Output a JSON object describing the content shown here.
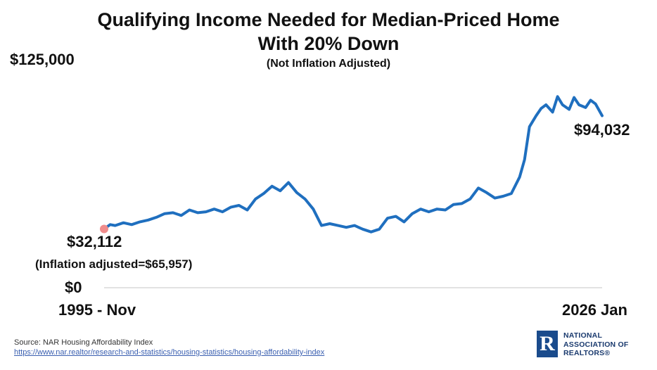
{
  "header": {
    "title_line1": "Qualifying Income Needed for Median-Priced Home",
    "title_line2": "With 20% Down",
    "subtitle": "(Not Inflation Adjusted)"
  },
  "chart_data": {
    "type": "line",
    "title": "Qualifying Income Needed for Median-Priced Home With 20% Down",
    "subtitle": "(Not Inflation Adjusted)",
    "xlabel": "",
    "ylabel": "",
    "ylim": [
      0,
      125000
    ],
    "y_tick_labels": [
      "$0",
      "$125,000"
    ],
    "x_tick_labels": [
      "1995 - Nov",
      "2026 Jan"
    ],
    "color": "#1f6fbf",
    "start_marker_color": "#f08c8c",
    "series": [
      {
        "name": "Qualifying income",
        "x": [
          1995.83,
          1996.2,
          1996.5,
          1997.0,
          1997.5,
          1998.0,
          1998.5,
          1999.0,
          1999.5,
          2000.0,
          2000.5,
          2001.0,
          2001.5,
          2002.0,
          2002.5,
          2003.0,
          2003.5,
          2004.0,
          2004.5,
          2005.0,
          2005.5,
          2006.0,
          2006.5,
          2007.0,
          2007.5,
          2008.0,
          2008.5,
          2009.0,
          2009.5,
          2010.0,
          2010.5,
          2011.0,
          2011.5,
          2012.0,
          2012.5,
          2013.0,
          2013.5,
          2014.0,
          2014.5,
          2015.0,
          2015.5,
          2016.0,
          2016.5,
          2017.0,
          2017.5,
          2018.0,
          2018.5,
          2019.0,
          2019.5,
          2020.0,
          2020.5,
          2021.0,
          2021.3,
          2021.6,
          2022.0,
          2022.3,
          2022.6,
          2023.0,
          2023.3,
          2023.6,
          2024.0,
          2024.3,
          2024.6,
          2025.0,
          2025.3,
          2025.6,
          2026.0
        ],
        "values": [
          32112,
          34500,
          34000,
          35500,
          34500,
          36000,
          37000,
          38500,
          40500,
          41000,
          39500,
          42500,
          41000,
          41500,
          43000,
          41500,
          44000,
          45000,
          42500,
          48500,
          51500,
          55500,
          53000,
          57500,
          52000,
          48500,
          43000,
          34000,
          35000,
          34000,
          33000,
          34000,
          32000,
          30500,
          32000,
          38000,
          39000,
          36000,
          40500,
          43000,
          41500,
          43000,
          42500,
          45500,
          46000,
          48500,
          54500,
          52000,
          49000,
          50000,
          51500,
          60500,
          70000,
          88000,
          94000,
          98000,
          100000,
          96000,
          104500,
          100000,
          97500,
          104000,
          100000,
          98500,
          102500,
          100500,
          94032
        ]
      }
    ],
    "annotations": [
      {
        "text": "$32,112",
        "position": "start"
      },
      {
        "text": "(Inflation adjusted=$65,957)",
        "position": "start"
      },
      {
        "text": "$94,032",
        "position": "end"
      }
    ]
  },
  "footer": {
    "source": "Source: NAR Housing Affordability Index",
    "url": "https://www.nar.realtor/research-and-statistics/housing-statistics/housing-affordability-index"
  },
  "logo": {
    "mark": "R",
    "line1": "NATIONAL",
    "line2": "ASSOCIATION OF",
    "line3": "REALTORS®"
  }
}
